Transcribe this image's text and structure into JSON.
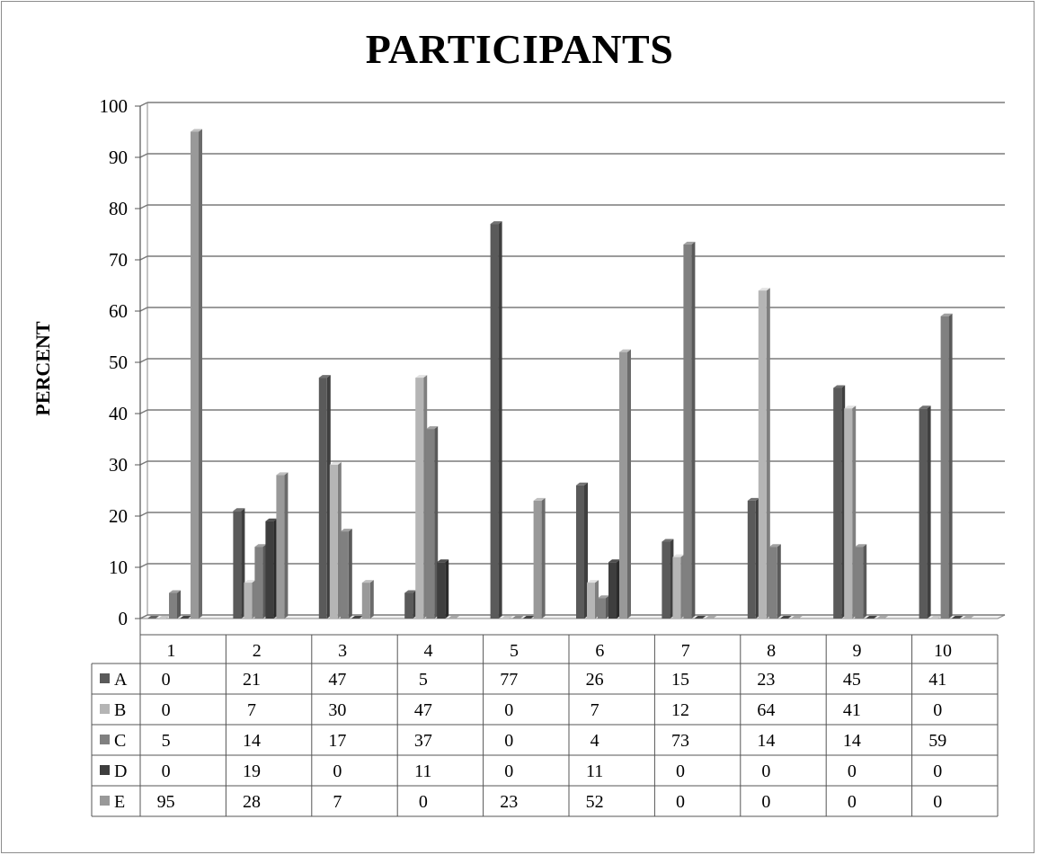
{
  "chart_data": {
    "type": "bar",
    "title": "PARTICIPANTS",
    "ylabel": "PERCENT",
    "xlabel": "",
    "ylim": [
      0,
      100
    ],
    "yticks": [
      0,
      10,
      20,
      30,
      40,
      50,
      60,
      70,
      80,
      90,
      100
    ],
    "grid": true,
    "legend": "data-table",
    "categories": [
      "1",
      "2",
      "3",
      "4",
      "5",
      "6",
      "7",
      "8",
      "9",
      "10"
    ],
    "series": [
      {
        "name": "A",
        "color": "#5a5a5a",
        "values": [
          0,
          21,
          47,
          5,
          77,
          26,
          15,
          23,
          45,
          41
        ]
      },
      {
        "name": "B",
        "color": "#b5b5b5",
        "values": [
          0,
          7,
          30,
          47,
          0,
          7,
          12,
          64,
          41,
          0
        ]
      },
      {
        "name": "C",
        "color": "#808080",
        "values": [
          5,
          14,
          17,
          37,
          0,
          4,
          73,
          14,
          14,
          59
        ]
      },
      {
        "name": "D",
        "color": "#3e3e3e",
        "values": [
          0,
          19,
          0,
          11,
          0,
          11,
          0,
          0,
          0,
          0
        ]
      },
      {
        "name": "E",
        "color": "#999999",
        "values": [
          95,
          28,
          7,
          0,
          23,
          52,
          0,
          0,
          0,
          0
        ]
      }
    ]
  }
}
